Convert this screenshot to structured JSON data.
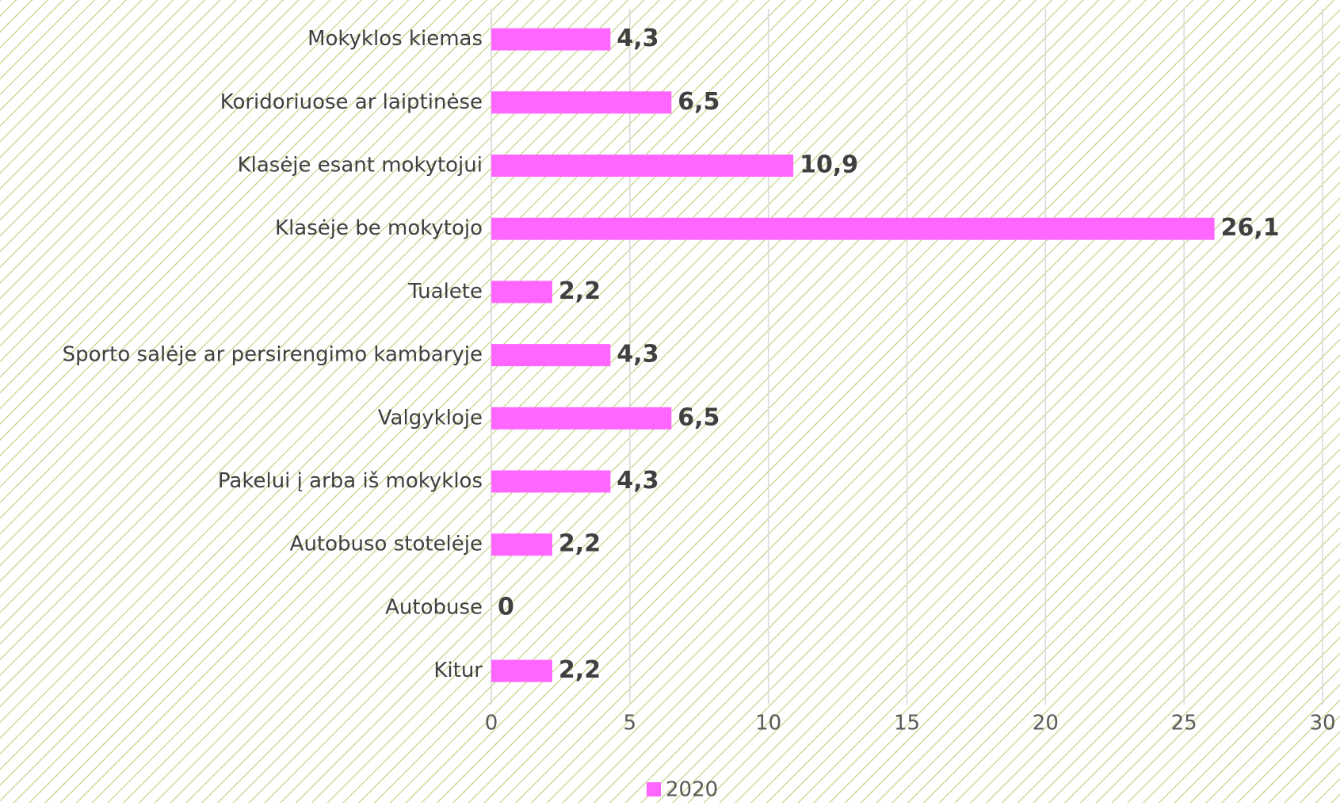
{
  "chart_data": {
    "type": "bar",
    "orientation": "horizontal",
    "categories": [
      "Mokyklos kiemas",
      "Koridoriuose ar laiptinėse",
      "Klasėje esant mokytojui",
      "Klasėje be mokytojo",
      "Tualete",
      "Sporto salėje ar persirengimo kambaryje",
      "Valgykloje",
      "Pakelui į arba iš mokyklos",
      "Autobuso stotelėje",
      "Autobuse",
      "Kitur"
    ],
    "series": [
      {
        "name": "2020",
        "color": "#ff66ff",
        "values": [
          4.3,
          6.5,
          10.9,
          26.1,
          2.2,
          4.3,
          6.5,
          4.3,
          2.2,
          0,
          2.2
        ],
        "value_labels": [
          "4,3",
          "6,5",
          "10,9",
          "26,1",
          "2,2",
          "4,3",
          "6,5",
          "4,3",
          "2,2",
          "0",
          "2,2"
        ]
      }
    ],
    "xlim": [
      0,
      30
    ],
    "xticks": [
      0,
      5,
      10,
      15,
      20,
      25,
      30
    ],
    "grid": true,
    "legend": "bottom"
  }
}
